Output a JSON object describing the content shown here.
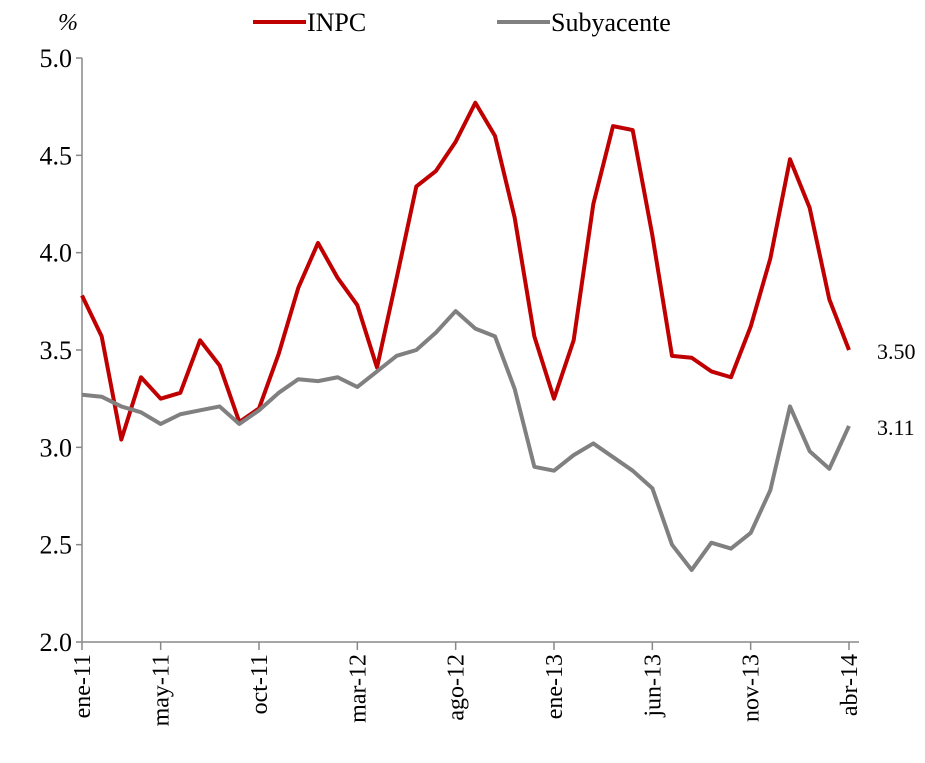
{
  "chart_data": {
    "type": "line",
    "y_label": "%",
    "categories": [
      "ene-11",
      null,
      null,
      null,
      "may-11",
      null,
      null,
      null,
      null,
      "oct-11",
      null,
      null,
      null,
      null,
      "mar-12",
      null,
      null,
      null,
      null,
      "ago-12",
      null,
      null,
      null,
      null,
      "ene-13",
      null,
      null,
      null,
      null,
      "jun-13",
      null,
      null,
      null,
      null,
      "nov-13",
      null,
      null,
      null,
      null,
      "abr-14"
    ],
    "series": [
      {
        "name": "INPC",
        "color": "#c00000",
        "values": [
          3.78,
          3.57,
          3.04,
          3.36,
          3.25,
          3.28,
          3.55,
          3.42,
          3.13,
          3.2,
          3.48,
          3.82,
          4.05,
          3.87,
          3.73,
          3.41,
          3.87,
          4.34,
          4.42,
          4.57,
          4.77,
          4.6,
          4.18,
          3.57,
          3.25,
          3.55,
          4.25,
          4.65,
          4.63,
          4.09,
          3.47,
          3.46,
          3.39,
          3.36,
          3.62,
          3.97,
          4.48,
          4.23,
          3.76,
          3.5
        ],
        "value_labels": [
          null,
          null,
          null,
          null,
          null,
          null,
          null,
          null,
          null,
          null,
          null,
          null,
          null,
          null,
          null,
          null,
          null,
          null,
          null,
          null,
          null,
          null,
          null,
          null,
          null,
          null,
          null,
          null,
          null,
          null,
          null,
          null,
          null,
          null,
          null,
          null,
          null,
          null,
          null,
          "3.50"
        ]
      },
      {
        "name": "Subyacente",
        "color": "#808080",
        "values": [
          3.27,
          3.26,
          3.21,
          3.18,
          3.12,
          3.17,
          3.19,
          3.21,
          3.12,
          3.19,
          3.28,
          3.35,
          3.34,
          3.36,
          3.31,
          3.39,
          3.47,
          3.5,
          3.59,
          3.7,
          3.61,
          3.57,
          3.3,
          2.9,
          2.88,
          2.96,
          3.02,
          2.95,
          2.88,
          2.79,
          2.5,
          2.37,
          2.51,
          2.48,
          2.56,
          2.78,
          3.21,
          2.98,
          2.89,
          3.11
        ],
        "value_labels": [
          null,
          null,
          null,
          null,
          null,
          null,
          null,
          null,
          null,
          null,
          null,
          null,
          null,
          null,
          null,
          null,
          null,
          null,
          null,
          null,
          null,
          null,
          null,
          null,
          null,
          null,
          null,
          null,
          null,
          null,
          null,
          null,
          null,
          null,
          null,
          null,
          null,
          null,
          null,
          "3.11"
        ]
      }
    ],
    "ylim": [
      2.0,
      5.0
    ],
    "yticks": [
      {
        "value": 2,
        "label": "2.0"
      },
      {
        "value": 2.5,
        "label": "2.5"
      },
      {
        "value": 3,
        "label": "3.0"
      },
      {
        "value": 3.5,
        "label": "3.5"
      },
      {
        "value": 4,
        "label": "4.0"
      },
      {
        "value": 4.5,
        "label": "4.5"
      },
      {
        "value": 5,
        "label": "5.0"
      }
    ],
    "legend": "top"
  }
}
